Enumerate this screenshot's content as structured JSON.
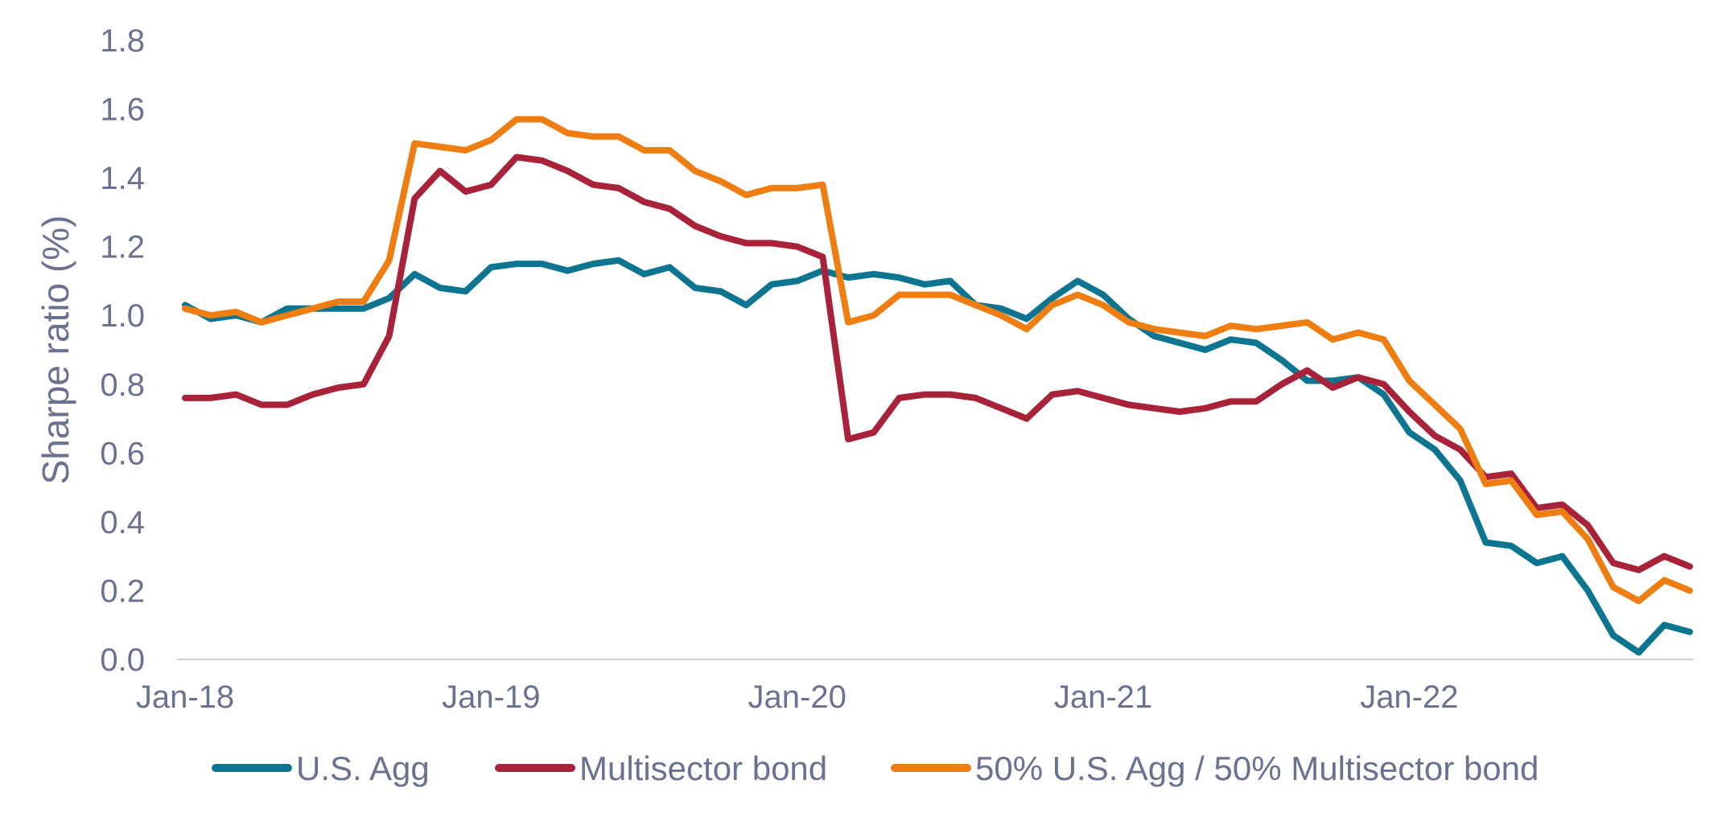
{
  "chart_data": {
    "type": "line",
    "ylabel": "Sharpe ratio (%)",
    "xlabel": "",
    "ylim": [
      0,
      1.8
    ],
    "yticks": [
      "0.0",
      "0.2",
      "0.4",
      "0.6",
      "0.8",
      "1.0",
      "1.2",
      "1.4",
      "1.6",
      "1.8"
    ],
    "x_tick_labels": [
      "Jan-18",
      "Jan-19",
      "Jan-20",
      "Jan-21",
      "Jan-22"
    ],
    "x_tick_indices": [
      0,
      12,
      24,
      36,
      48
    ],
    "x": [
      "Jan-18",
      "Feb-18",
      "Mar-18",
      "Apr-18",
      "May-18",
      "Jun-18",
      "Jul-18",
      "Aug-18",
      "Sep-18",
      "Oct-18",
      "Nov-18",
      "Dec-18",
      "Jan-19",
      "Feb-19",
      "Mar-19",
      "Apr-19",
      "May-19",
      "Jun-19",
      "Jul-19",
      "Aug-19",
      "Sep-19",
      "Oct-19",
      "Nov-19",
      "Dec-19",
      "Jan-20",
      "Feb-20",
      "Mar-20",
      "Apr-20",
      "May-20",
      "Jun-20",
      "Jul-20",
      "Aug-20",
      "Sep-20",
      "Oct-20",
      "Nov-20",
      "Dec-20",
      "Jan-21",
      "Feb-21",
      "Mar-21",
      "Apr-21",
      "May-21",
      "Jun-21",
      "Jul-21",
      "Aug-21",
      "Sep-21",
      "Oct-21",
      "Nov-21",
      "Dec-21",
      "Jan-22",
      "Feb-22",
      "Mar-22",
      "Apr-22",
      "May-22",
      "Jun-22",
      "Jul-22",
      "Aug-22",
      "Sep-22",
      "Oct-22",
      "Nov-22",
      "Dec-22"
    ],
    "grid": false,
    "legend_position": "bottom",
    "series": [
      {
        "name": "U.S. Agg",
        "color": "#0e7590",
        "values": [
          1.03,
          0.99,
          1.0,
          0.98,
          1.02,
          1.02,
          1.02,
          1.02,
          1.05,
          1.12,
          1.08,
          1.07,
          1.14,
          1.15,
          1.15,
          1.13,
          1.15,
          1.16,
          1.12,
          1.14,
          1.08,
          1.07,
          1.03,
          1.09,
          1.1,
          1.13,
          1.11,
          1.12,
          1.11,
          1.09,
          1.1,
          1.03,
          1.02,
          0.99,
          1.05,
          1.1,
          1.06,
          0.99,
          0.94,
          0.92,
          0.9,
          0.93,
          0.92,
          0.87,
          0.81,
          0.81,
          0.82,
          0.77,
          0.66,
          0.61,
          0.52,
          0.34,
          0.33,
          0.28,
          0.3,
          0.2,
          0.07,
          0.02,
          0.1,
          0.08
        ]
      },
      {
        "name": "Multisector bond",
        "color": "#a8233a",
        "values": [
          0.76,
          0.76,
          0.77,
          0.74,
          0.74,
          0.77,
          0.79,
          0.8,
          0.94,
          1.34,
          1.42,
          1.36,
          1.38,
          1.46,
          1.45,
          1.42,
          1.38,
          1.37,
          1.33,
          1.31,
          1.26,
          1.23,
          1.21,
          1.21,
          1.2,
          1.17,
          0.64,
          0.66,
          0.76,
          0.77,
          0.77,
          0.76,
          0.73,
          0.7,
          0.77,
          0.78,
          0.76,
          0.74,
          0.73,
          0.72,
          0.73,
          0.75,
          0.75,
          0.8,
          0.84,
          0.79,
          0.82,
          0.8,
          0.72,
          0.65,
          0.61,
          0.53,
          0.54,
          0.44,
          0.45,
          0.39,
          0.28,
          0.26,
          0.3,
          0.27
        ]
      },
      {
        "name": "50% U.S. Agg / 50% Multisector bond",
        "color": "#ee7d12",
        "values": [
          1.02,
          1.0,
          1.01,
          0.98,
          1.0,
          1.02,
          1.04,
          1.04,
          1.16,
          1.5,
          1.49,
          1.48,
          1.51,
          1.57,
          1.57,
          1.53,
          1.52,
          1.52,
          1.48,
          1.48,
          1.42,
          1.39,
          1.35,
          1.37,
          1.37,
          1.38,
          0.98,
          1.0,
          1.06,
          1.06,
          1.06,
          1.03,
          1.0,
          0.96,
          1.03,
          1.06,
          1.03,
          0.98,
          0.96,
          0.95,
          0.94,
          0.97,
          0.96,
          0.97,
          0.98,
          0.93,
          0.95,
          0.93,
          0.81,
          0.74,
          0.67,
          0.51,
          0.52,
          0.42,
          0.43,
          0.35,
          0.21,
          0.17,
          0.23,
          0.2
        ]
      }
    ]
  }
}
